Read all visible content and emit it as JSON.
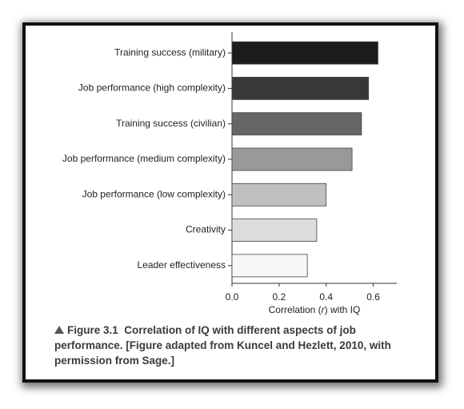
{
  "chart_data": {
    "type": "hbar",
    "categories": [
      "Training success (military)",
      "Job performance (high complexity)",
      "Training success (civilian)",
      "Job performance (medium complexity)",
      "Job performance (low complexity)",
      "Creativity",
      "Leader effectiveness"
    ],
    "values": [
      0.62,
      0.58,
      0.55,
      0.51,
      0.4,
      0.36,
      0.32
    ],
    "colors": [
      "#1c1c1c",
      "#383838",
      "#666666",
      "#999999",
      "#c0c0c0",
      "#dcdcdc",
      "#f7f7f7"
    ],
    "xlim": [
      0,
      0.7
    ],
    "xticks": [
      {
        "value": 0,
        "label": "0.0"
      },
      0.2,
      0.4,
      0.6
    ],
    "xlabel": [
      "Correlation (",
      "r",
      ") with IQ"
    ]
  },
  "caption": {
    "label": "Figure 3.1",
    "text": "Correlation of IQ with different aspects of job performance. [Figure adapted from Kuncel and Hezlett, 2010, with permission from Sage.]"
  }
}
